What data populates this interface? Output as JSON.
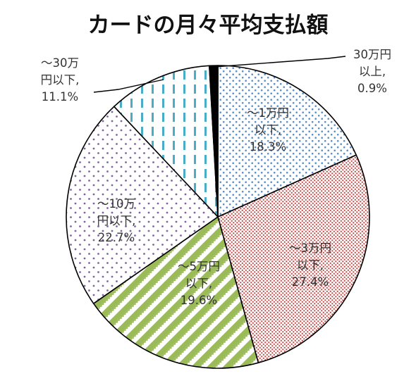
{
  "chart_data": {
    "type": "pie",
    "title": "カードの月々平均支払額",
    "start_angle_deg": 0,
    "direction": "clockwise",
    "slices": [
      {
        "label_lines": [
          "〜1万円",
          "以下,",
          "18.3%"
        ],
        "value": 18.3,
        "color": "#5b8fc9",
        "pattern": "dots"
      },
      {
        "label_lines": [
          "〜3万円",
          "以下,",
          "27.4%"
        ],
        "value": 27.4,
        "color": "#c0504d",
        "pattern": "dense-dots"
      },
      {
        "label_lines": [
          "〜5万円",
          "以下,",
          "19.6%"
        ],
        "value": 19.6,
        "color": "#9bbb59",
        "pattern": "diagonal-zigzag"
      },
      {
        "label_lines": [
          "〜10万",
          "円以下,",
          "22.7%"
        ],
        "value": 22.7,
        "color": "#8064a2",
        "pattern": "sparse-dots"
      },
      {
        "label_lines": [
          "〜30万",
          "円以下,",
          "11.1%"
        ],
        "value": 11.1,
        "color": "#4bacc6",
        "pattern": "dashed-vertical"
      },
      {
        "label_lines": [
          "30万円",
          "以上,",
          "0.9%"
        ],
        "value": 0.9,
        "color": "#000000",
        "pattern": "solid"
      }
    ]
  }
}
